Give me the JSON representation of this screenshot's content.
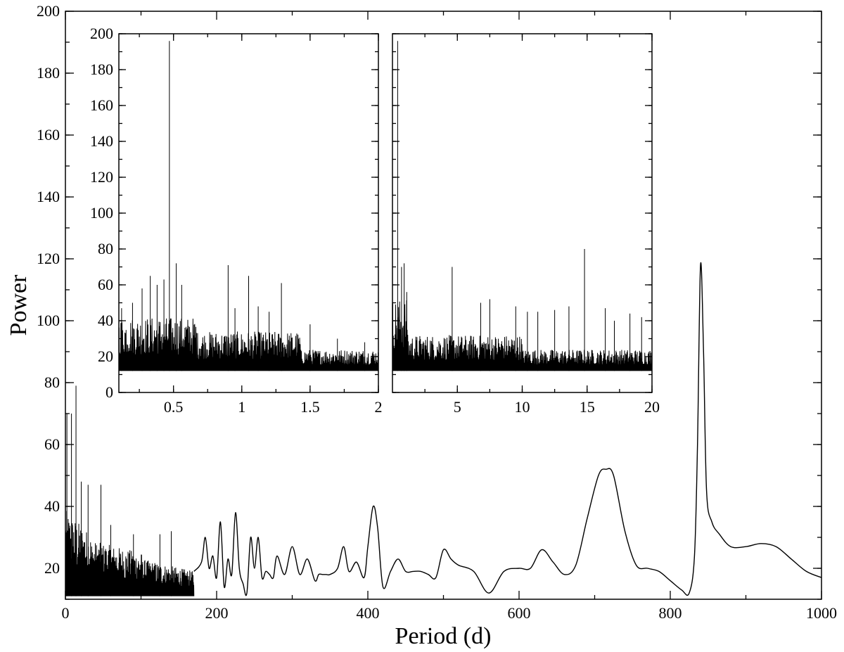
{
  "chart_data": [
    {
      "type": "line",
      "id": "main",
      "xlabel": "Period (d)",
      "ylabel": "Power",
      "xlim": [
        0,
        1000
      ],
      "ylim": [
        10,
        200
      ],
      "x_ticks": [
        0,
        200,
        400,
        600,
        800,
        1000
      ],
      "y_ticks": [
        20,
        40,
        60,
        80,
        100,
        120,
        140,
        160,
        180,
        200
      ],
      "grid": false,
      "noise_region": {
        "x_range": [
          0,
          170
        ],
        "floor": 11,
        "peaks": [
          [
            2,
            70
          ],
          [
            8,
            70
          ],
          [
            14,
            79
          ],
          [
            21,
            48
          ],
          [
            30,
            47
          ],
          [
            47,
            47
          ],
          [
            60,
            34
          ],
          [
            90,
            31
          ],
          [
            125,
            31
          ],
          [
            140,
            32
          ]
        ]
      },
      "series": [
        {
          "x": [
            170,
            180,
            185,
            190,
            195,
            200,
            205,
            210,
            215,
            220,
            225,
            230,
            235,
            240,
            245,
            250,
            255,
            260,
            265,
            270,
            275,
            280,
            290,
            300,
            310,
            320,
            330,
            335,
            340,
            345,
            350,
            360,
            368,
            375,
            385,
            395,
            400,
            407,
            413,
            420,
            430,
            440,
            450,
            460,
            470,
            480,
            490,
            500,
            510,
            520,
            540,
            560,
            580,
            600,
            615,
            630,
            645,
            660,
            675,
            690,
            705,
            715,
            725,
            740,
            755,
            770,
            785,
            800,
            815,
            825,
            832,
            836,
            840,
            844,
            848,
            855,
            865,
            880,
            900,
            920,
            940,
            960,
            980,
            1000
          ],
          "y": [
            19,
            22,
            30,
            20,
            24,
            17,
            35,
            14,
            23,
            18,
            38,
            20,
            15,
            12,
            30,
            20,
            30,
            17,
            19,
            18,
            17,
            24,
            18,
            27,
            18,
            23,
            16,
            18,
            18,
            18,
            18,
            20,
            27,
            19,
            22,
            17,
            27,
            40,
            33,
            14,
            19,
            23,
            19,
            19,
            19,
            18,
            17,
            26,
            23,
            21,
            19,
            12,
            19,
            20,
            20,
            26,
            22,
            18,
            21,
            36,
            50,
            52,
            50,
            32,
            21,
            20,
            19,
            16,
            13,
            12,
            24,
            60,
            118,
            90,
            45,
            35,
            31,
            27,
            27,
            28,
            27,
            23,
            19,
            17
          ]
        }
      ]
    },
    {
      "type": "line",
      "id": "inset-left",
      "xlim": [
        0.1,
        2
      ],
      "ylim": [
        0,
        200
      ],
      "x_ticks": [
        0.5,
        1,
        1.5,
        2
      ],
      "x_tick_labels": [
        "0.5",
        "1",
        "1.5",
        "2"
      ],
      "y_ticks": [
        0,
        20,
        40,
        60,
        80,
        100,
        120,
        140,
        160,
        180,
        200
      ],
      "grid": false,
      "noise_floor": 12,
      "noise_peaks": [
        [
          0.12,
          47
        ],
        [
          0.2,
          50
        ],
        [
          0.27,
          58
        ],
        [
          0.33,
          65
        ],
        [
          0.38,
          60
        ],
        [
          0.43,
          63
        ],
        [
          0.47,
          196
        ],
        [
          0.52,
          72
        ],
        [
          0.56,
          60
        ],
        [
          0.9,
          71
        ],
        [
          0.95,
          47
        ],
        [
          1.05,
          65
        ],
        [
          1.12,
          48
        ],
        [
          1.2,
          45
        ],
        [
          1.29,
          61
        ],
        [
          1.5,
          38
        ],
        [
          1.7,
          30
        ],
        [
          1.9,
          28
        ]
      ]
    },
    {
      "type": "line",
      "id": "inset-right",
      "xlim": [
        0,
        20
      ],
      "ylim": [
        0,
        200
      ],
      "x_ticks": [
        5,
        10,
        15,
        20
      ],
      "x_tick_labels": [
        "5",
        "10",
        "15",
        "20"
      ],
      "y_ticks": [
        0,
        20,
        40,
        60,
        80,
        100,
        120,
        140,
        160,
        180,
        200
      ],
      "grid": false,
      "noise_floor": 12,
      "noise_peaks": [
        [
          0.4,
          196
        ],
        [
          0.7,
          70
        ],
        [
          0.9,
          72
        ],
        [
          1.1,
          56
        ],
        [
          4.6,
          70
        ],
        [
          6.8,
          50
        ],
        [
          7.5,
          52
        ],
        [
          9.5,
          48
        ],
        [
          10.4,
          45
        ],
        [
          11.2,
          45
        ],
        [
          12.5,
          46
        ],
        [
          13.6,
          48
        ],
        [
          14.8,
          80
        ],
        [
          16.4,
          47
        ],
        [
          17.1,
          40
        ],
        [
          18.3,
          44
        ],
        [
          19.2,
          42
        ]
      ]
    }
  ]
}
